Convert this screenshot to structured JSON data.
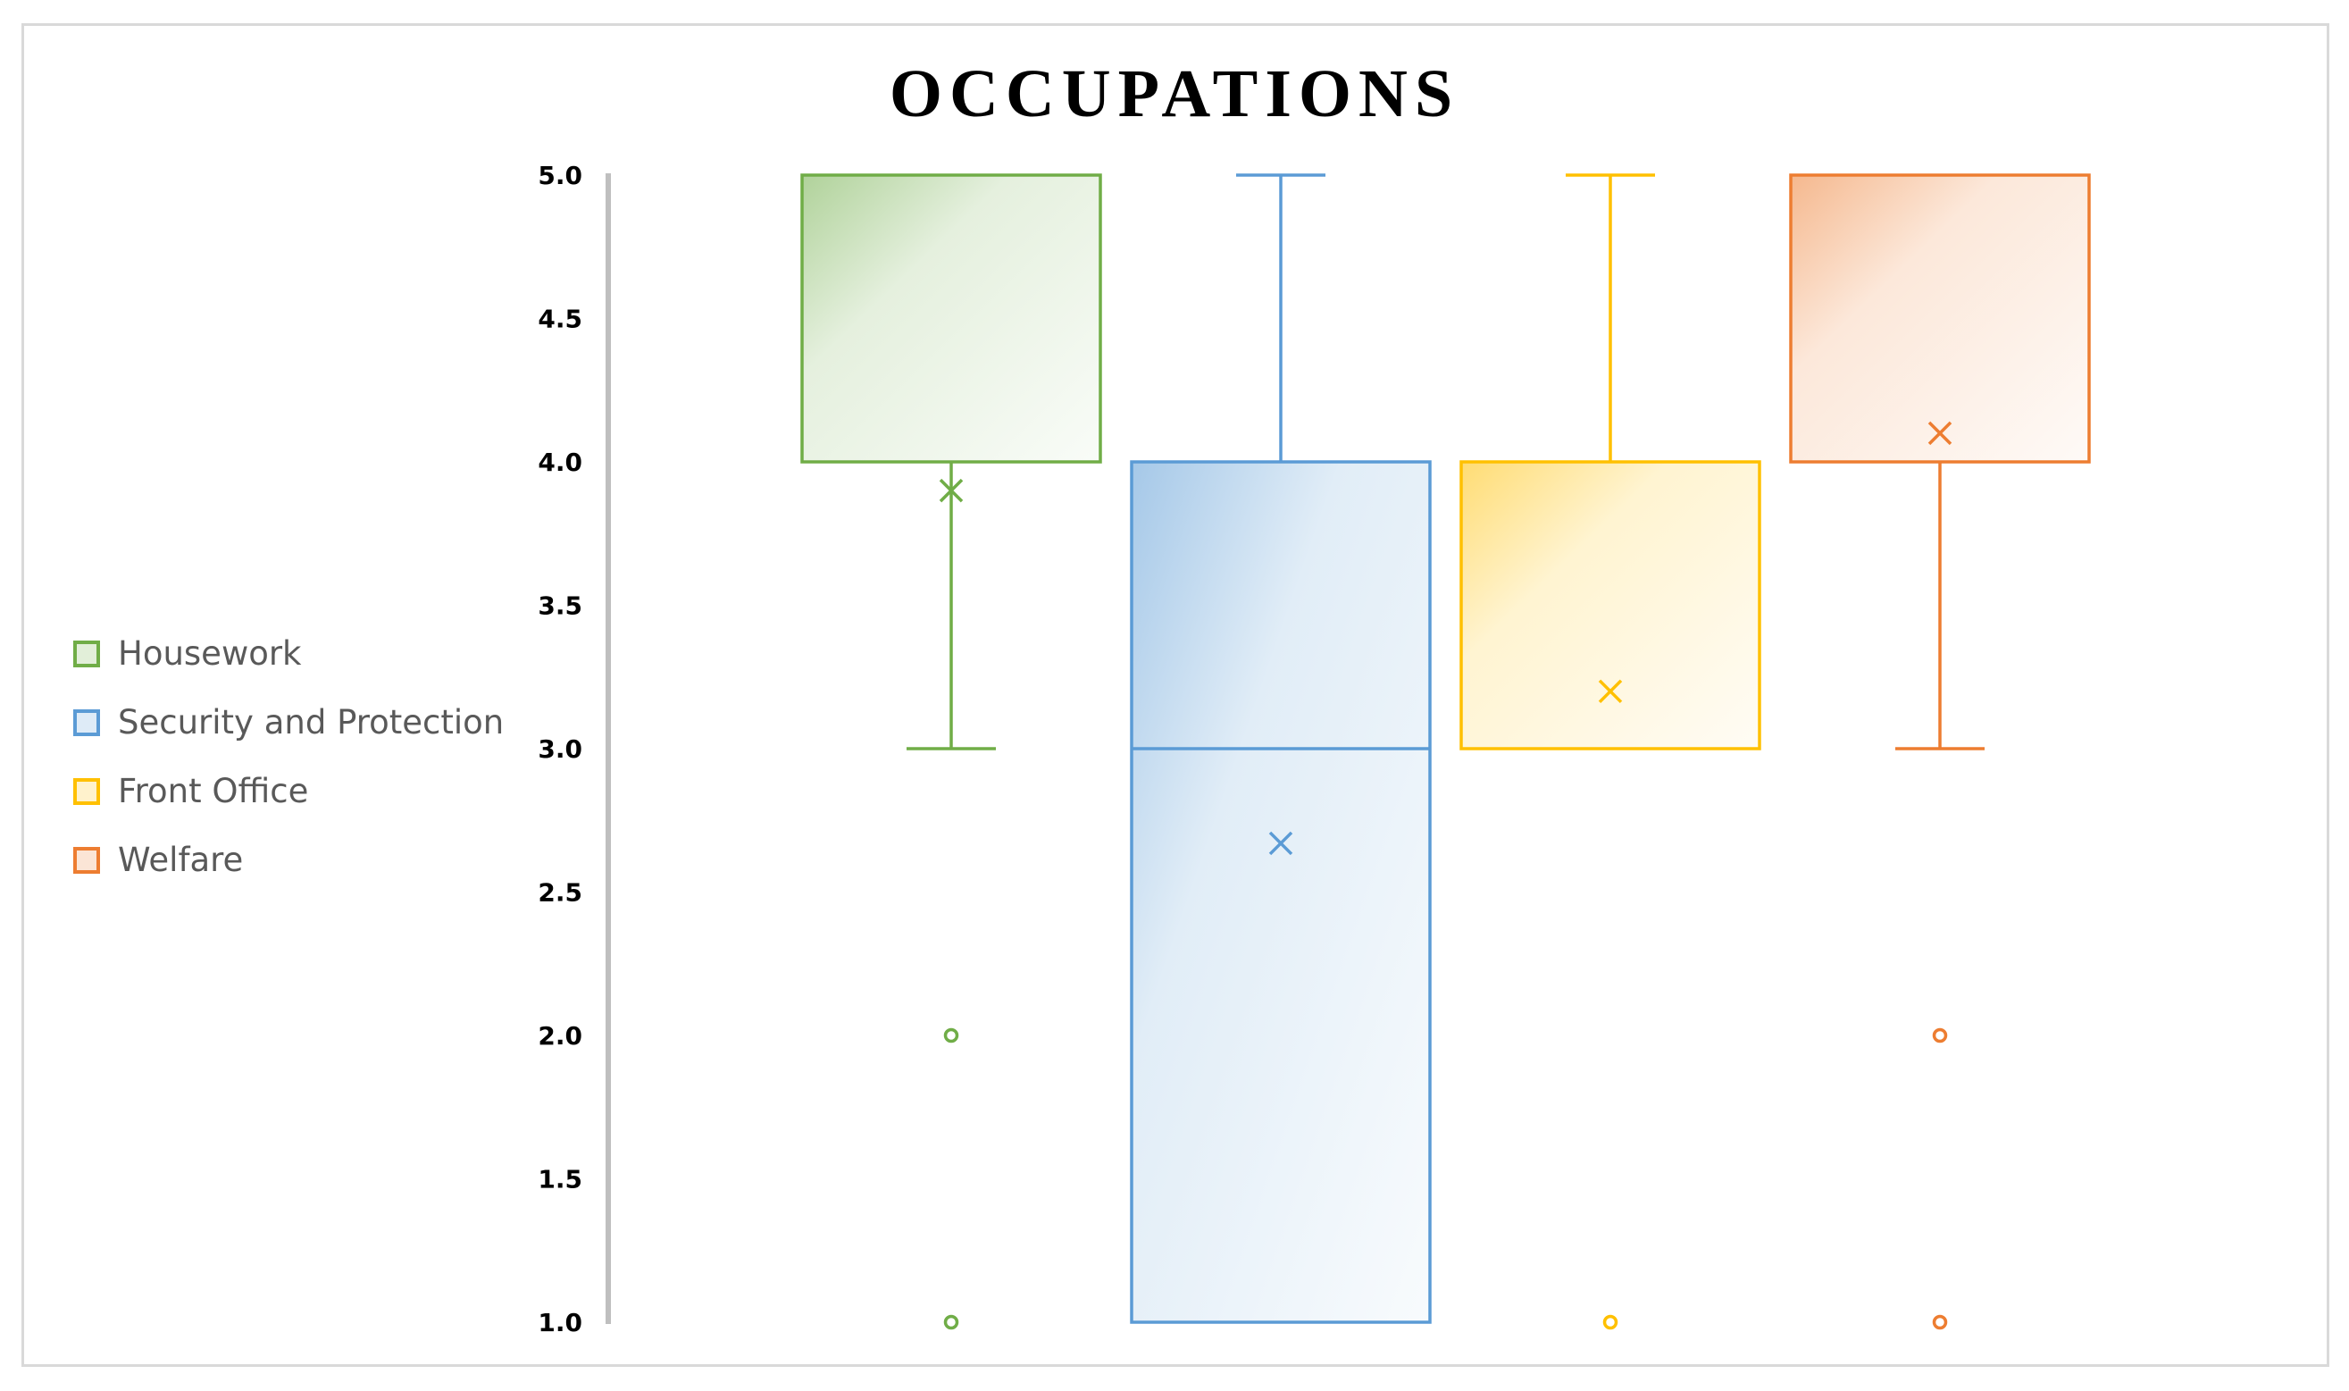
{
  "chart_data": {
    "type": "boxplot",
    "title": "OCCUPATIONS",
    "xlabel": "",
    "ylabel": "",
    "ylim": [
      1.0,
      5.0
    ],
    "yticks": [
      "1.0",
      "1.5",
      "2.0",
      "2.5",
      "3.0",
      "3.5",
      "4.0",
      "4.5",
      "5.0"
    ],
    "grid": false,
    "legend_position": "left",
    "series": [
      {
        "name": "Housework",
        "color": "#70ad47",
        "whisker_low": 3.0,
        "q1": 4.0,
        "median": 4.0,
        "q3": 5.0,
        "whisker_high": 5.0,
        "mean": 3.9,
        "outliers": [
          2.0,
          1.0
        ]
      },
      {
        "name": "Security and Protection",
        "color": "#5b9bd5",
        "whisker_low": 1.0,
        "q1": 1.0,
        "median": 3.0,
        "q3": 4.0,
        "whisker_high": 5.0,
        "mean": 2.67,
        "outliers": []
      },
      {
        "name": "Front Office",
        "color": "#ffc000",
        "whisker_low": 3.0,
        "q1": 3.0,
        "median": 3.0,
        "q3": 4.0,
        "whisker_high": 5.0,
        "mean": 3.2,
        "outliers": [
          1.0
        ]
      },
      {
        "name": "Welfare",
        "color": "#ed7d31",
        "whisker_low": 3.0,
        "q1": 4.0,
        "median": 4.0,
        "q3": 5.0,
        "whisker_high": 5.0,
        "mean": 4.1,
        "outliers": [
          2.0,
          1.0
        ]
      }
    ]
  }
}
